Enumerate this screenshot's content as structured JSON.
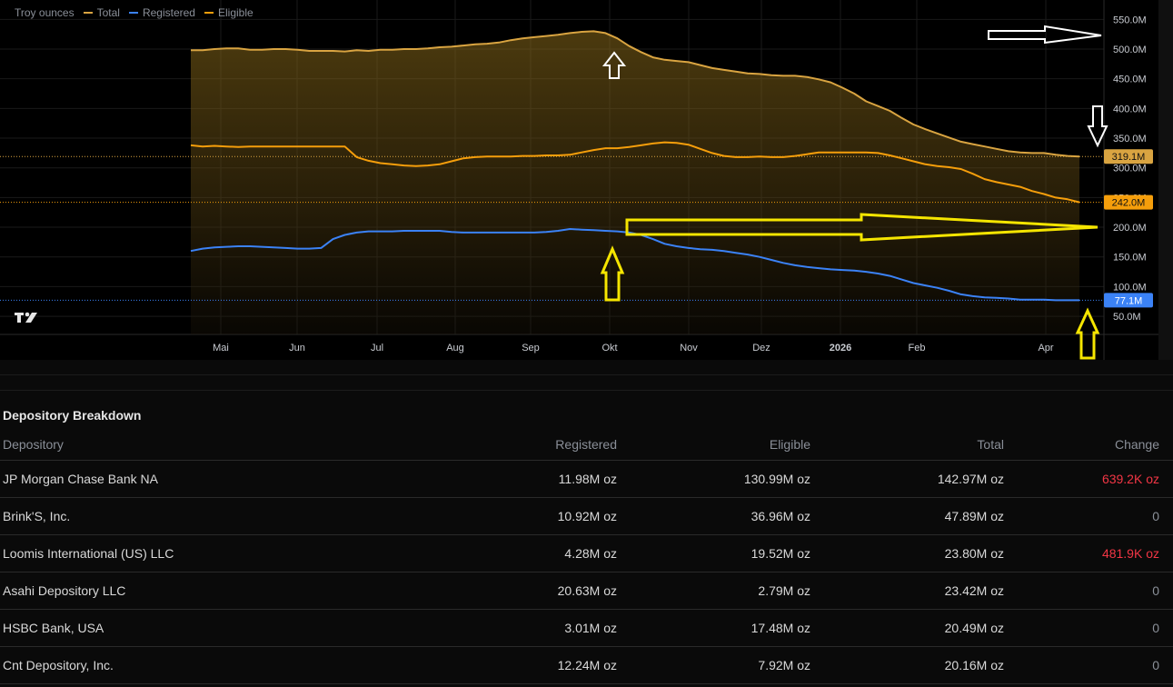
{
  "legend": {
    "units": "Troy ounces",
    "items": [
      {
        "label": "Total",
        "color": "#d9a441"
      },
      {
        "label": "Registered",
        "color": "#3b82f6"
      },
      {
        "label": "Eligible",
        "color": "#f59e0b"
      }
    ]
  },
  "chart_data": {
    "type": "line",
    "x_ticks": [
      "Mai",
      "Jun",
      "Jul",
      "Aug",
      "Sep",
      "Okt",
      "Nov",
      "Dez",
      "2026",
      "Feb",
      "Apr"
    ],
    "y_ticks": [
      "550.0M",
      "500.0M",
      "450.0M",
      "400.0M",
      "350.0M",
      "300.0M",
      "250.0M",
      "200.0M",
      "150.0M",
      "100.0M",
      "50.0M"
    ],
    "ylim": [
      30,
      565
    ],
    "units": "M",
    "series": [
      {
        "name": "Total",
        "color": "#d9a441",
        "values": [
          498,
          498,
          500,
          501,
          501,
          499,
          499,
          500,
          500,
          499,
          497,
          497,
          497,
          496,
          498,
          497,
          499,
          499,
          500,
          500,
          501,
          503,
          504,
          506,
          508,
          509,
          511,
          515,
          518,
          520,
          522,
          524,
          527,
          529,
          530,
          527,
          518,
          505,
          495,
          486,
          482,
          480,
          478,
          473,
          468,
          465,
          462,
          459,
          458,
          456,
          455,
          455,
          453,
          449,
          444,
          435,
          425,
          412,
          404,
          396,
          384,
          373,
          365,
          358,
          351,
          344,
          340,
          336,
          332,
          328,
          326,
          325,
          325,
          322,
          320,
          319.1
        ]
      },
      {
        "name": "Eligible",
        "color": "#f59e0b",
        "values": [
          338,
          336,
          337,
          336,
          335,
          336,
          336,
          336,
          336,
          336,
          336,
          336,
          336,
          336,
          318,
          312,
          308,
          306,
          304,
          303,
          304,
          306,
          311,
          316,
          318,
          319,
          319,
          319,
          320,
          320,
          321,
          321,
          322,
          326,
          330,
          333,
          333,
          335,
          338,
          341,
          343,
          342,
          339,
          332,
          325,
          320,
          318,
          318,
          319,
          318,
          318,
          320,
          323,
          326,
          326,
          326,
          326,
          326,
          325,
          321,
          316,
          311,
          306,
          303,
          301,
          298,
          290,
          281,
          276,
          272,
          268,
          261,
          256,
          250,
          247,
          242.0
        ]
      },
      {
        "name": "Registered",
        "color": "#3b82f6",
        "values": [
          160,
          164,
          166,
          167,
          168,
          168,
          167,
          166,
          165,
          164,
          164,
          165,
          180,
          187,
          191,
          193,
          193,
          193,
          194,
          194,
          194,
          194,
          192,
          191,
          191,
          191,
          191,
          191,
          191,
          191,
          192,
          194,
          197,
          196,
          195,
          194,
          193,
          191,
          187,
          180,
          172,
          168,
          165,
          163,
          162,
          160,
          157,
          154,
          150,
          145,
          140,
          136,
          133,
          131,
          129,
          128,
          127,
          125,
          122,
          118,
          112,
          106,
          102,
          98,
          93,
          87,
          84,
          82,
          81,
          80,
          78,
          78,
          78,
          77,
          77,
          77.1
        ]
      }
    ],
    "price_labels": [
      {
        "text": "319.1M",
        "value": 319.1,
        "color": "#d9a441"
      },
      {
        "text": "242.0M",
        "value": 242.0,
        "color": "#f59e0b"
      },
      {
        "text": "77.1M",
        "value": 77.1,
        "color": "#3b82f6"
      }
    ]
  },
  "table": {
    "title": "Depository Breakdown",
    "columns": [
      "Depository",
      "Registered",
      "Eligible",
      "Total",
      "Change"
    ],
    "rows": [
      {
        "depository": "JP Morgan Chase Bank NA",
        "registered": "11.98M oz",
        "eligible": "130.99M oz",
        "total": "142.97M oz",
        "change": "639.2K oz",
        "change_state": "neg"
      },
      {
        "depository": "Brink'S, Inc.",
        "registered": "10.92M oz",
        "eligible": "36.96M oz",
        "total": "47.89M oz",
        "change": "0",
        "change_state": "zero"
      },
      {
        "depository": "Loomis International (US) LLC",
        "registered": "4.28M oz",
        "eligible": "19.52M oz",
        "total": "23.80M oz",
        "change": "481.9K oz",
        "change_state": "neg"
      },
      {
        "depository": "Asahi Depository LLC",
        "registered": "20.63M oz",
        "eligible": "2.79M oz",
        "total": "23.42M oz",
        "change": "0",
        "change_state": "zero"
      },
      {
        "depository": "HSBC Bank, USA",
        "registered": "3.01M oz",
        "eligible": "17.48M oz",
        "total": "20.49M oz",
        "change": "0",
        "change_state": "zero"
      },
      {
        "depository": "Cnt Depository, Inc.",
        "registered": "12.24M oz",
        "eligible": "7.92M oz",
        "total": "20.16M oz",
        "change": "0",
        "change_state": "zero"
      }
    ]
  }
}
